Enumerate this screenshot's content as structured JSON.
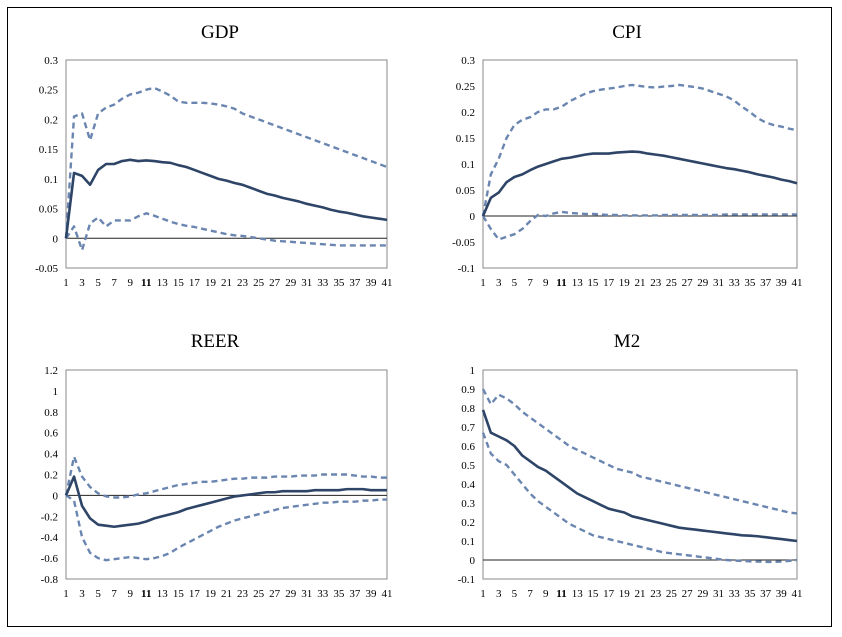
{
  "chart_data": [
    {
      "type": "line",
      "title": "GDP",
      "x": [
        1,
        2,
        3,
        4,
        5,
        6,
        7,
        8,
        9,
        10,
        11,
        12,
        13,
        14,
        15,
        16,
        17,
        18,
        19,
        20,
        21,
        22,
        23,
        24,
        25,
        26,
        27,
        28,
        29,
        30,
        31,
        32,
        33,
        34,
        35,
        36,
        37,
        38,
        39,
        40,
        41
      ],
      "x_tick_labels": [
        "1",
        "3",
        "5",
        "7",
        "9",
        "11",
        "13",
        "15",
        "17",
        "19",
        "21",
        "23",
        "25",
        "27",
        "29",
        "31",
        "33",
        "35",
        "37",
        "39",
        "41"
      ],
      "y_tick_labels": [
        "0.3",
        "0.25",
        "0.2",
        "0.15",
        "0.1",
        "0.05",
        "0",
        "-0.05"
      ],
      "ylim": [
        -0.05,
        0.3
      ],
      "series": [
        {
          "name": "response",
          "style": "solid",
          "values": [
            0,
            0.11,
            0.105,
            0.09,
            0.115,
            0.125,
            0.125,
            0.13,
            0.132,
            0.13,
            0.131,
            0.13,
            0.128,
            0.127,
            0.123,
            0.12,
            0.115,
            0.11,
            0.105,
            0.1,
            0.097,
            0.093,
            0.09,
            0.085,
            0.08,
            0.075,
            0.072,
            0.068,
            0.065,
            0.062,
            0.058,
            0.055,
            0.052,
            0.048,
            0.045,
            0.043,
            0.04,
            0.037,
            0.035,
            0.033,
            0.031
          ]
        },
        {
          "name": "upper band",
          "style": "dashed",
          "values": [
            0,
            0.205,
            0.21,
            0.165,
            0.21,
            0.22,
            0.225,
            0.235,
            0.242,
            0.245,
            0.25,
            0.253,
            0.247,
            0.24,
            0.23,
            0.228,
            0.228,
            0.228,
            0.227,
            0.225,
            0.222,
            0.218,
            0.21,
            0.205,
            0.2,
            0.195,
            0.19,
            0.185,
            0.18,
            0.175,
            0.17,
            0.165,
            0.16,
            0.155,
            0.15,
            0.145,
            0.14,
            0.135,
            0.13,
            0.125,
            0.12
          ]
        },
        {
          "name": "lower band",
          "style": "dashed",
          "values": [
            0,
            0.02,
            -0.02,
            0.025,
            0.035,
            0.02,
            0.03,
            0.03,
            0.03,
            0.037,
            0.042,
            0.038,
            0.033,
            0.028,
            0.024,
            0.021,
            0.019,
            0.016,
            0.013,
            0.01,
            0.007,
            0.005,
            0.004,
            0.002,
            0.0,
            -0.002,
            -0.004,
            -0.005,
            -0.006,
            -0.007,
            -0.008,
            -0.009,
            -0.01,
            -0.011,
            -0.012,
            -0.012,
            -0.012,
            -0.012,
            -0.012,
            -0.012,
            -0.012
          ]
        }
      ]
    },
    {
      "type": "line",
      "title": "CPI",
      "x": [
        1,
        2,
        3,
        4,
        5,
        6,
        7,
        8,
        9,
        10,
        11,
        12,
        13,
        14,
        15,
        16,
        17,
        18,
        19,
        20,
        21,
        22,
        23,
        24,
        25,
        26,
        27,
        28,
        29,
        30,
        31,
        32,
        33,
        34,
        35,
        36,
        37,
        38,
        39,
        40,
        41
      ],
      "x_tick_labels": [
        "1",
        "3",
        "5",
        "7",
        "9",
        "11",
        "13",
        "15",
        "17",
        "19",
        "21",
        "23",
        "25",
        "27",
        "29",
        "31",
        "33",
        "35",
        "37",
        "39",
        "41"
      ],
      "y_tick_labels": [
        "0.3",
        "0.25",
        "0.2",
        "0.15",
        "0.1",
        "0.05",
        "0",
        "-0.05",
        "-0.1"
      ],
      "ylim": [
        -0.1,
        0.3
      ],
      "series": [
        {
          "name": "response",
          "style": "solid",
          "values": [
            0,
            0.035,
            0.045,
            0.065,
            0.075,
            0.08,
            0.088,
            0.095,
            0.1,
            0.105,
            0.11,
            0.112,
            0.115,
            0.118,
            0.12,
            0.12,
            0.12,
            0.122,
            0.123,
            0.124,
            0.123,
            0.12,
            0.118,
            0.116,
            0.113,
            0.11,
            0.107,
            0.104,
            0.101,
            0.098,
            0.095,
            0.092,
            0.09,
            0.087,
            0.084,
            0.08,
            0.077,
            0.074,
            0.07,
            0.067,
            0.063
          ]
        },
        {
          "name": "upper band",
          "style": "dashed",
          "values": [
            0,
            0.08,
            0.11,
            0.15,
            0.175,
            0.185,
            0.19,
            0.2,
            0.205,
            0.205,
            0.21,
            0.22,
            0.228,
            0.235,
            0.24,
            0.243,
            0.245,
            0.247,
            0.25,
            0.252,
            0.25,
            0.248,
            0.247,
            0.249,
            0.25,
            0.252,
            0.25,
            0.248,
            0.245,
            0.24,
            0.235,
            0.23,
            0.222,
            0.21,
            0.2,
            0.188,
            0.18,
            0.175,
            0.172,
            0.168,
            0.165
          ]
        },
        {
          "name": "lower band",
          "style": "dashed",
          "values": [
            0,
            -0.025,
            -0.045,
            -0.04,
            -0.035,
            -0.025,
            -0.01,
            0.002,
            0.0,
            0.005,
            0.008,
            0.006,
            0.005,
            0.004,
            0.004,
            0.003,
            0.002,
            0.002,
            0.001,
            0.001,
            0.001,
            0.001,
            0.001,
            0.002,
            0.002,
            0.002,
            0.002,
            0.002,
            0.002,
            0.002,
            0.002,
            0.003,
            0.003,
            0.003,
            0.003,
            0.003,
            0.003,
            0.003,
            0.003,
            0.003,
            0.003
          ]
        }
      ]
    },
    {
      "type": "line",
      "title": "REER",
      "x": [
        1,
        2,
        3,
        4,
        5,
        6,
        7,
        8,
        9,
        10,
        11,
        12,
        13,
        14,
        15,
        16,
        17,
        18,
        19,
        20,
        21,
        22,
        23,
        24,
        25,
        26,
        27,
        28,
        29,
        30,
        31,
        32,
        33,
        34,
        35,
        36,
        37,
        38,
        39,
        40,
        41
      ],
      "x_tick_labels": [
        "1",
        "3",
        "5",
        "7",
        "9",
        "11",
        "13",
        "15",
        "17",
        "19",
        "21",
        "23",
        "25",
        "27",
        "29",
        "31",
        "33",
        "35",
        "37",
        "39",
        "41"
      ],
      "y_tick_labels": [
        "1.2",
        "1",
        "0.8",
        "0.6",
        "0.4",
        "0.2",
        "0",
        "-0.2",
        "-0.4",
        "-0.6",
        "-0.8"
      ],
      "ylim": [
        -0.8,
        1.2
      ],
      "series": [
        {
          "name": "response",
          "style": "solid",
          "values": [
            0,
            0.18,
            -0.1,
            -0.22,
            -0.28,
            -0.29,
            -0.3,
            -0.29,
            -0.28,
            -0.27,
            -0.25,
            -0.22,
            -0.2,
            -0.18,
            -0.16,
            -0.13,
            -0.11,
            -0.09,
            -0.07,
            -0.05,
            -0.03,
            -0.01,
            0.0,
            0.01,
            0.02,
            0.03,
            0.03,
            0.04,
            0.04,
            0.04,
            0.04,
            0.05,
            0.05,
            0.05,
            0.05,
            0.06,
            0.06,
            0.06,
            0.05,
            0.05,
            0.05
          ]
        },
        {
          "name": "upper band",
          "style": "dashed",
          "values": [
            0,
            0.37,
            0.18,
            0.08,
            0.02,
            -0.01,
            -0.02,
            -0.02,
            -0.01,
            0.01,
            0.02,
            0.04,
            0.06,
            0.08,
            0.1,
            0.11,
            0.12,
            0.13,
            0.13,
            0.14,
            0.15,
            0.16,
            0.16,
            0.17,
            0.17,
            0.17,
            0.18,
            0.18,
            0.18,
            0.19,
            0.19,
            0.19,
            0.2,
            0.2,
            0.2,
            0.2,
            0.19,
            0.18,
            0.18,
            0.17,
            0.17
          ]
        },
        {
          "name": "lower band",
          "style": "dashed",
          "values": [
            0,
            -0.05,
            -0.4,
            -0.55,
            -0.6,
            -0.62,
            -0.61,
            -0.6,
            -0.59,
            -0.6,
            -0.61,
            -0.6,
            -0.58,
            -0.55,
            -0.5,
            -0.46,
            -0.42,
            -0.38,
            -0.34,
            -0.3,
            -0.27,
            -0.24,
            -0.22,
            -0.2,
            -0.18,
            -0.16,
            -0.14,
            -0.12,
            -0.11,
            -0.1,
            -0.09,
            -0.08,
            -0.07,
            -0.07,
            -0.06,
            -0.06,
            -0.06,
            -0.05,
            -0.05,
            -0.04,
            -0.04
          ]
        }
      ]
    },
    {
      "type": "line",
      "title": "M2",
      "x": [
        1,
        2,
        3,
        4,
        5,
        6,
        7,
        8,
        9,
        10,
        11,
        12,
        13,
        14,
        15,
        16,
        17,
        18,
        19,
        20,
        21,
        22,
        23,
        24,
        25,
        26,
        27,
        28,
        29,
        30,
        31,
        32,
        33,
        34,
        35,
        36,
        37,
        38,
        39,
        40,
        41
      ],
      "x_tick_labels": [
        "1",
        "3",
        "5",
        "7",
        "9",
        "11",
        "13",
        "15",
        "17",
        "19",
        "21",
        "23",
        "25",
        "27",
        "29",
        "31",
        "33",
        "35",
        "37",
        "39",
        "41"
      ],
      "y_tick_labels": [
        "1",
        "0.9",
        "0.8",
        "0.7",
        "0.6",
        "0.5",
        "0.4",
        "0.3",
        "0.2",
        "0.1",
        "0",
        "-0.1"
      ],
      "ylim": [
        -0.1,
        1.0
      ],
      "series": [
        {
          "name": "response",
          "style": "solid",
          "values": [
            0.79,
            0.67,
            0.65,
            0.63,
            0.6,
            0.55,
            0.52,
            0.49,
            0.47,
            0.44,
            0.41,
            0.38,
            0.35,
            0.33,
            0.31,
            0.29,
            0.27,
            0.26,
            0.25,
            0.23,
            0.22,
            0.21,
            0.2,
            0.19,
            0.18,
            0.17,
            0.165,
            0.16,
            0.155,
            0.15,
            0.145,
            0.14,
            0.135,
            0.13,
            0.128,
            0.125,
            0.12,
            0.115,
            0.11,
            0.105,
            0.1
          ]
        },
        {
          "name": "upper band",
          "style": "dashed",
          "values": [
            0.9,
            0.82,
            0.87,
            0.85,
            0.82,
            0.78,
            0.75,
            0.72,
            0.69,
            0.66,
            0.63,
            0.6,
            0.58,
            0.56,
            0.54,
            0.52,
            0.5,
            0.48,
            0.47,
            0.46,
            0.44,
            0.43,
            0.42,
            0.41,
            0.4,
            0.39,
            0.38,
            0.37,
            0.36,
            0.35,
            0.34,
            0.33,
            0.32,
            0.31,
            0.3,
            0.29,
            0.28,
            0.27,
            0.26,
            0.25,
            0.245
          ]
        },
        {
          "name": "lower band",
          "style": "dashed",
          "values": [
            0.67,
            0.56,
            0.52,
            0.5,
            0.45,
            0.4,
            0.35,
            0.31,
            0.28,
            0.25,
            0.22,
            0.19,
            0.17,
            0.15,
            0.13,
            0.12,
            0.11,
            0.1,
            0.09,
            0.08,
            0.07,
            0.06,
            0.05,
            0.04,
            0.035,
            0.03,
            0.025,
            0.02,
            0.015,
            0.01,
            0.005,
            0.0,
            -0.003,
            -0.005,
            -0.007,
            -0.008,
            -0.01,
            -0.01,
            -0.008,
            -0.005,
            0.0
          ]
        }
      ]
    }
  ]
}
